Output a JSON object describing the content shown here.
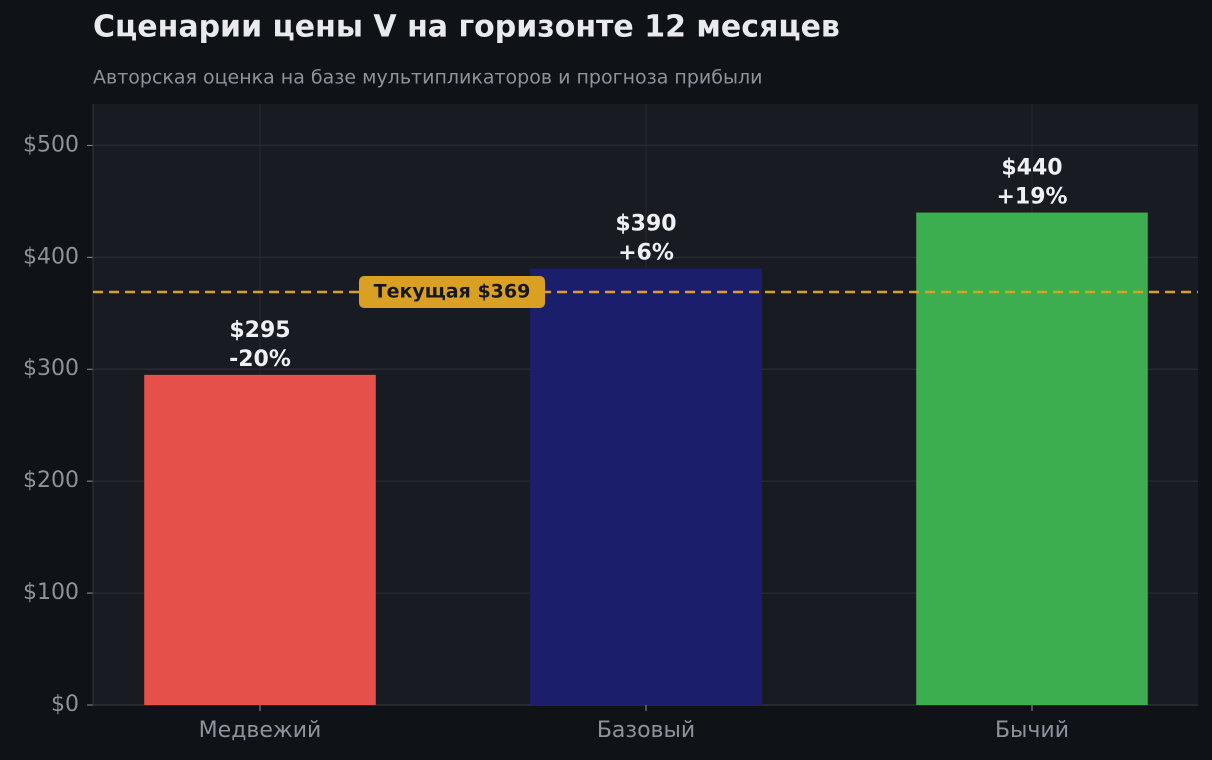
{
  "chart_data": {
    "type": "bar",
    "title": "Сценарии цены V на горизонте 12 месяцев",
    "subtitle": "Авторская оценка на базе мультипликаторов и прогноза прибыли",
    "categories": [
      "Медвежий",
      "Базовый",
      "Бычий"
    ],
    "values": [
      295,
      390,
      440
    ],
    "value_labels": [
      "$295",
      "$390",
      "$440"
    ],
    "change_labels": [
      "-20%",
      "+6%",
      "+19%"
    ],
    "colors": [
      "#e5504a",
      "#1b1f6b",
      "#3cae4f"
    ],
    "ylim": [
      0,
      537
    ],
    "yticks": [
      {
        "value": 0,
        "label": "$0"
      },
      {
        "value": 100,
        "label": "$100"
      },
      {
        "value": 200,
        "label": "$200"
      },
      {
        "value": 300,
        "label": "$300"
      },
      {
        "value": 400,
        "label": "$400"
      },
      {
        "value": 500,
        "label": "$500"
      }
    ],
    "grid": true,
    "reference": {
      "value": 369,
      "label": "Текущая $369",
      "color": "#d9a024"
    }
  }
}
